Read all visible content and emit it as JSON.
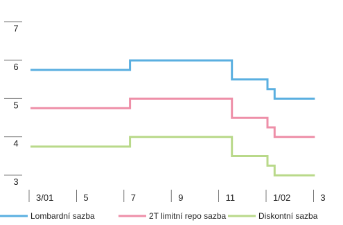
{
  "chart_data": {
    "type": "line",
    "step": true,
    "title": "",
    "xlabel": "",
    "ylabel": "",
    "ylim": [
      3,
      7.5
    ],
    "y_ticks": [
      3,
      4,
      5,
      6,
      7
    ],
    "x_ticks": [
      {
        "label": "3/01",
        "x": 0
      },
      {
        "label": "5",
        "x": 2
      },
      {
        "label": "7",
        "x": 4
      },
      {
        "label": "9",
        "x": 6
      },
      {
        "label": "11",
        "x": 8
      },
      {
        "label": "1/02",
        "x": 10
      },
      {
        "label": "3",
        "x": 12
      }
    ],
    "x_range": [
      0,
      13
    ],
    "grid": false,
    "legend_position": "bottom",
    "series": [
      {
        "name": "Lombardní sazba",
        "color": "#5aafe0",
        "points": [
          [
            0,
            6.0
          ],
          [
            4.2,
            6.0
          ],
          [
            4.2,
            6.25
          ],
          [
            8.5,
            6.25
          ],
          [
            8.5,
            5.75
          ],
          [
            10.0,
            5.75
          ],
          [
            10.0,
            5.5
          ],
          [
            10.3,
            5.5
          ],
          [
            10.3,
            5.25
          ],
          [
            12.0,
            5.25
          ]
        ]
      },
      {
        "name": "2T limitní repo sazba",
        "color": "#ee8fa8",
        "points": [
          [
            0,
            5.0
          ],
          [
            4.2,
            5.0
          ],
          [
            4.2,
            5.25
          ],
          [
            8.5,
            5.25
          ],
          [
            8.5,
            4.75
          ],
          [
            10.0,
            4.75
          ],
          [
            10.0,
            4.5
          ],
          [
            10.3,
            4.5
          ],
          [
            10.3,
            4.25
          ],
          [
            12.0,
            4.25
          ]
        ]
      },
      {
        "name": "Diskontní sazba",
        "color": "#b9d98a",
        "points": [
          [
            0,
            4.0
          ],
          [
            4.2,
            4.0
          ],
          [
            4.2,
            4.25
          ],
          [
            8.5,
            4.25
          ],
          [
            8.5,
            3.75
          ],
          [
            10.0,
            3.75
          ],
          [
            10.0,
            3.5
          ],
          [
            10.3,
            3.5
          ],
          [
            10.3,
            3.25
          ],
          [
            12.0,
            3.25
          ]
        ]
      }
    ]
  }
}
